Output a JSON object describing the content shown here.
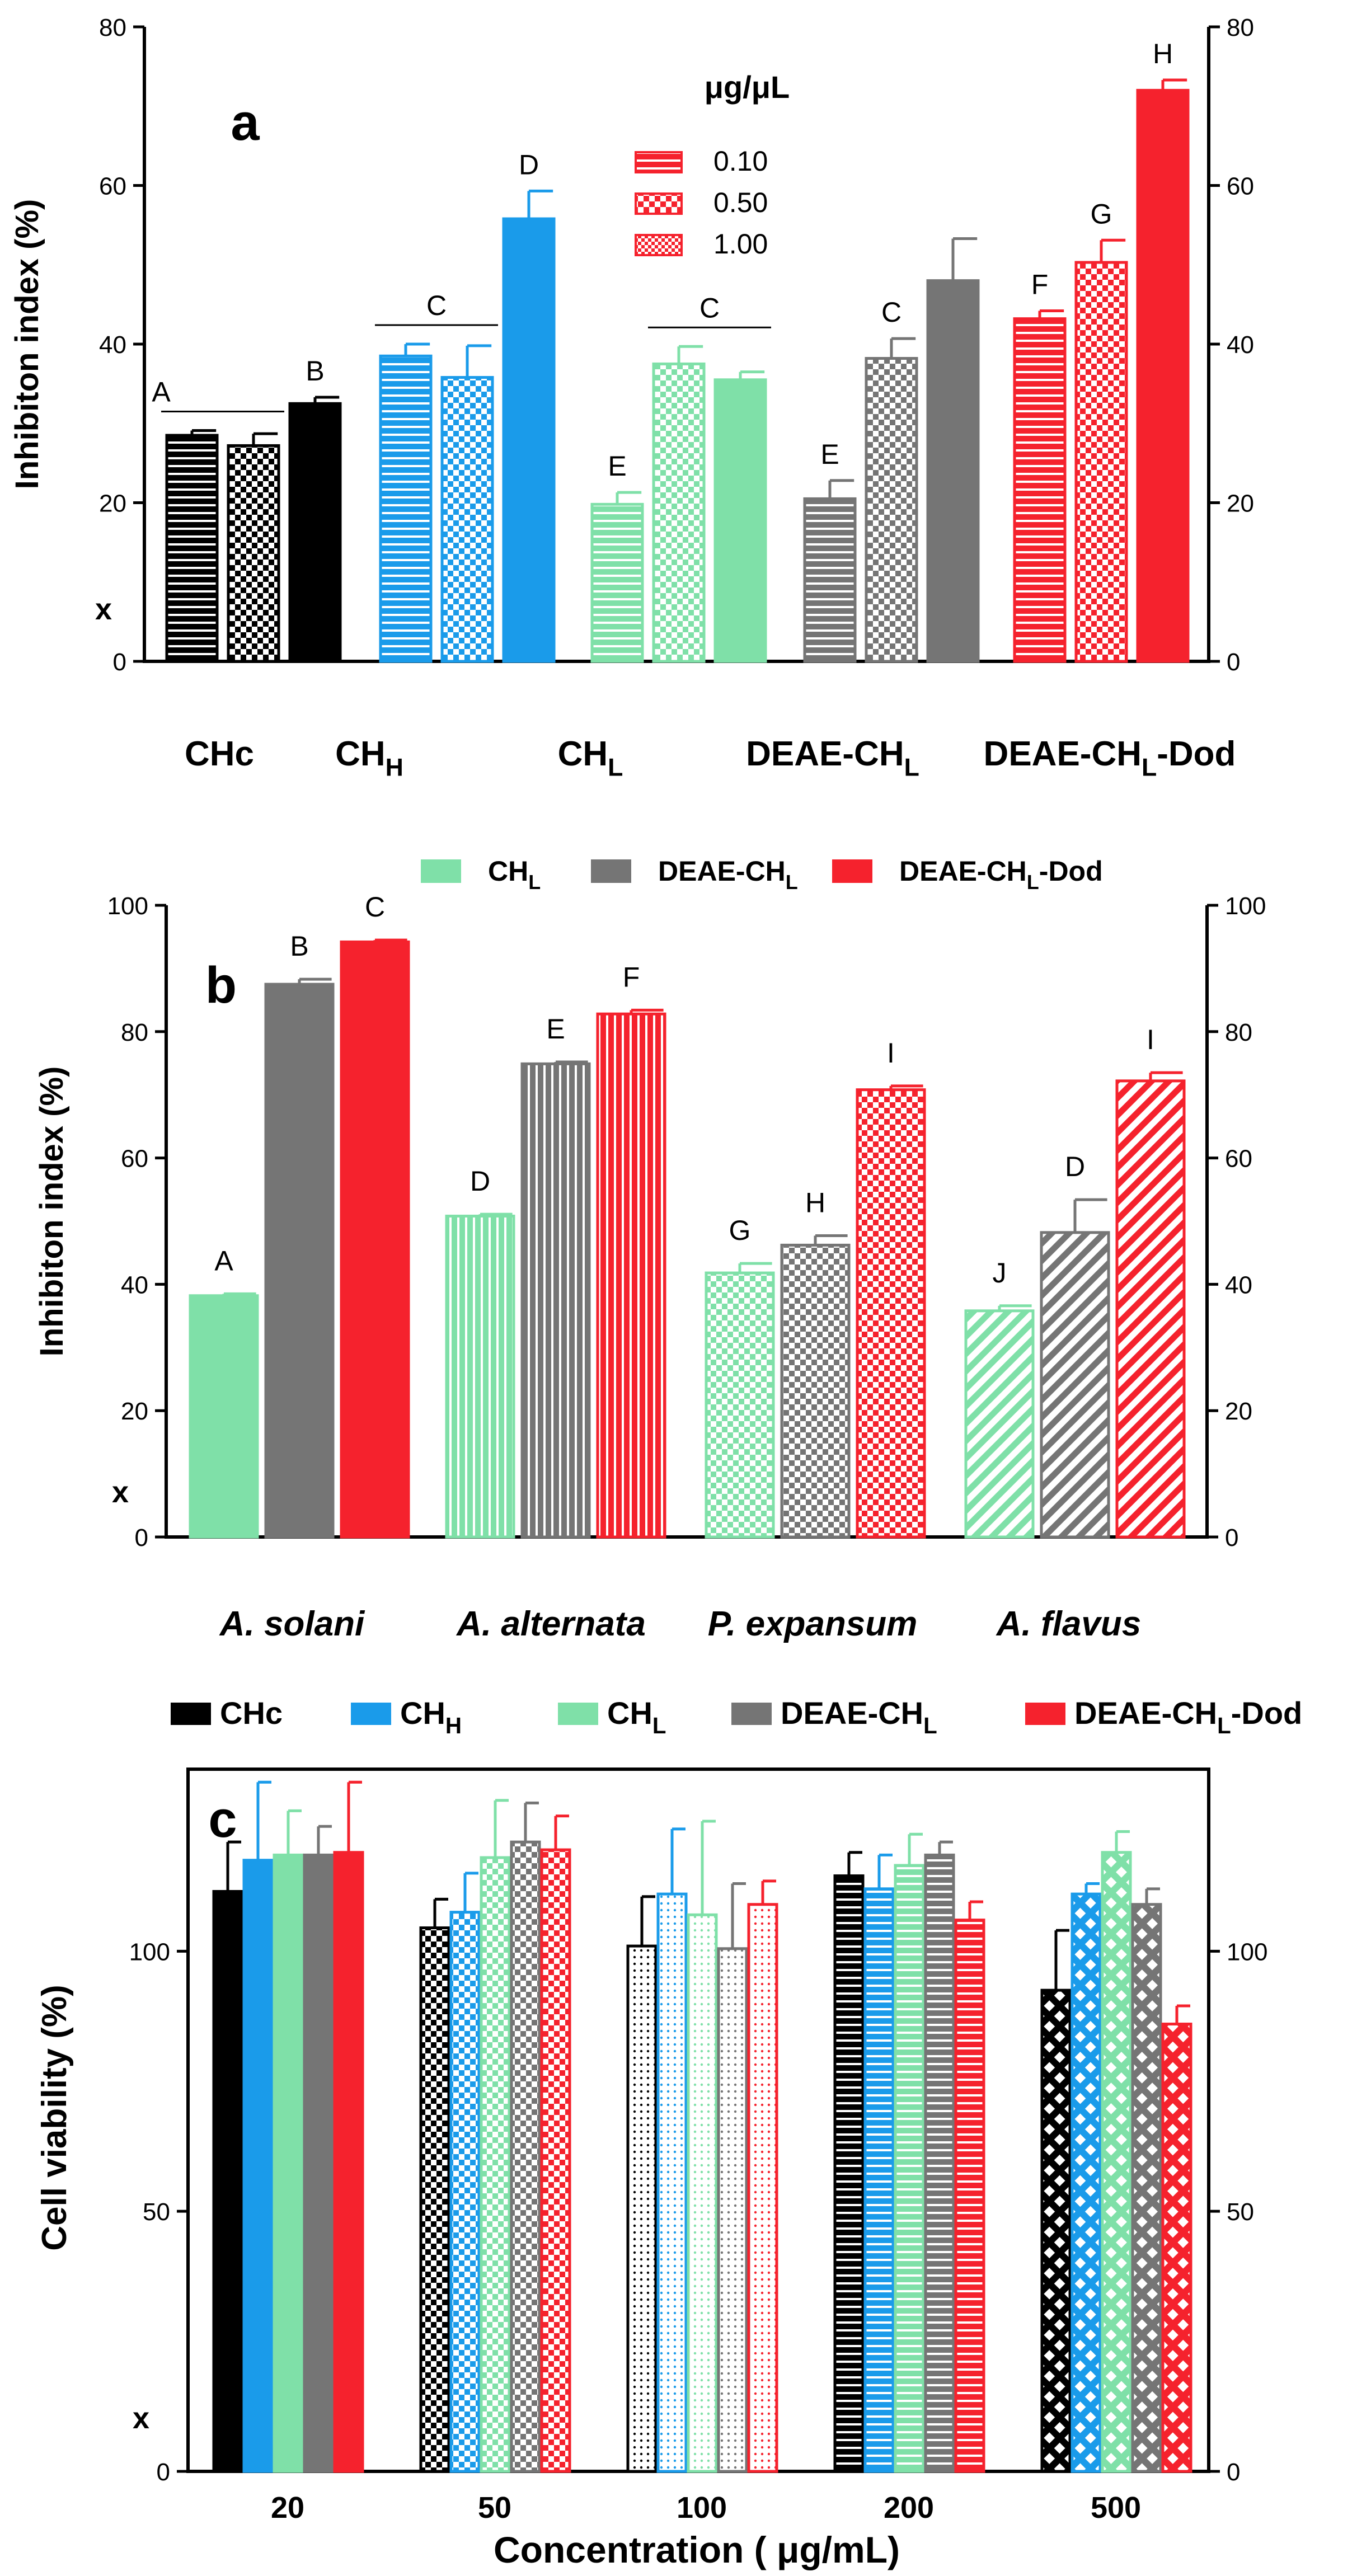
{
  "colors": {
    "black": "#000000",
    "blue": "#1a9bea",
    "green": "#7fe0a8",
    "gray": "#757575",
    "red": "#f5222d"
  },
  "chart_data": [
    {
      "id": "a",
      "type": "bar",
      "panel_label": "a",
      "ylabel": "Inhibiton index (%)",
      "xlabel": "",
      "ylim": [
        0,
        80
      ],
      "yticks": [
        0,
        20,
        40,
        60,
        80
      ],
      "y_marker": "x",
      "legend_title": "μg/μL",
      "legend": [
        {
          "label": "0.10",
          "pattern": "horizontal-lines"
        },
        {
          "label": "0.50",
          "pattern": "checker"
        },
        {
          "label": "1.00",
          "pattern": "dense-checker"
        }
      ],
      "groups": [
        {
          "label": "CHc",
          "color": "black",
          "bars": [
            {
              "value": 28.5,
              "err": 0.6,
              "pattern": "horizontal-lines"
            },
            {
              "value": 27.2,
              "err": 1.5,
              "pattern": "checker"
            },
            {
              "value": 32.5,
              "err": 0.8,
              "pattern": "solid"
            }
          ],
          "letters": [
            {
              "text": "A",
              "bars": [
                0,
                1
              ],
              "line": true
            },
            {
              "text": "B",
              "bars": [
                2
              ]
            }
          ]
        },
        {
          "label": "CH",
          "sub": "H",
          "color": "blue",
          "bars": [
            {
              "value": 38.5,
              "err": 1.5,
              "pattern": "horizontal-lines"
            },
            {
              "value": 35.8,
              "err": 4.0,
              "pattern": "checker"
            },
            {
              "value": 55.8,
              "err": 3.5,
              "pattern": "solid"
            }
          ],
          "letters": [
            {
              "text": "C",
              "bars": [
                0,
                1
              ],
              "line": true
            },
            {
              "text": "D",
              "bars": [
                2
              ]
            }
          ]
        },
        {
          "label": "CH",
          "sub": "L",
          "color": "green",
          "bars": [
            {
              "value": 19.8,
              "err": 1.5,
              "pattern": "horizontal-lines"
            },
            {
              "value": 37.5,
              "err": 2.2,
              "pattern": "checker"
            },
            {
              "value": 35.5,
              "err": 1.0,
              "pattern": "solid"
            }
          ],
          "letters": [
            {
              "text": "E",
              "bars": [
                0
              ]
            },
            {
              "text": "C",
              "bars": [
                1,
                2
              ],
              "line": true
            }
          ]
        },
        {
          "label": "DEAE-CH",
          "sub": "L",
          "color": "gray",
          "bars": [
            {
              "value": 20.5,
              "err": 2.3,
              "pattern": "horizontal-lines"
            },
            {
              "value": 38.2,
              "err": 2.5,
              "pattern": "checker"
            },
            {
              "value": 48.0,
              "err": 5.3,
              "pattern": "solid"
            }
          ],
          "letters": [
            {
              "text": "E",
              "bars": [
                0
              ]
            },
            {
              "text": "C",
              "bars": [
                1
              ]
            }
          ]
        },
        {
          "label": "DEAE-CH",
          "sub": "L",
          "suffix": "-Dod",
          "color": "red",
          "bars": [
            {
              "value": 43.2,
              "err": 1.0,
              "pattern": "horizontal-lines"
            },
            {
              "value": 50.3,
              "err": 2.8,
              "pattern": "checker"
            },
            {
              "value": 72.0,
              "err": 1.3,
              "pattern": "solid"
            }
          ],
          "letters": [
            {
              "text": "F",
              "bars": [
                0
              ]
            },
            {
              "text": "G",
              "bars": [
                1
              ]
            },
            {
              "text": "H",
              "bars": [
                2
              ]
            }
          ]
        }
      ]
    },
    {
      "id": "b",
      "type": "bar",
      "panel_label": "b",
      "ylabel": "Inhibiton index (%)",
      "xlabel": "",
      "ylim": [
        0,
        100
      ],
      "yticks": [
        0,
        20,
        40,
        60,
        80,
        100
      ],
      "y_marker": "x",
      "legend": [
        {
          "label": "CH",
          "sub": "L",
          "color": "green"
        },
        {
          "label": "DEAE-CH",
          "sub": "L",
          "color": "gray"
        },
        {
          "label": "DEAE-CH",
          "sub": "L",
          "suffix": "-Dod",
          "color": "red"
        }
      ],
      "groups": [
        {
          "label": "A. solani",
          "pattern": "solid",
          "bars": [
            {
              "value": 38.2,
              "err": 0.3,
              "color": "green",
              "letter": "A"
            },
            {
              "value": 87.5,
              "err": 0.8,
              "color": "gray",
              "letter": "B"
            },
            {
              "value": 94.2,
              "err": 0.3,
              "color": "red",
              "letter": "C"
            }
          ]
        },
        {
          "label": "A. alternata",
          "pattern": "vertical-lines",
          "bars": [
            {
              "value": 50.8,
              "err": 0.3,
              "color": "green",
              "letter": "D"
            },
            {
              "value": 74.9,
              "err": 0.3,
              "color": "gray",
              "letter": "E"
            },
            {
              "value": 82.8,
              "err": 0.6,
              "color": "red",
              "letter": "F"
            }
          ]
        },
        {
          "label": "P. expansum",
          "pattern": "checker",
          "bars": [
            {
              "value": 41.8,
              "err": 1.5,
              "color": "green",
              "letter": "G"
            },
            {
              "value": 46.2,
              "err": 1.5,
              "color": "gray",
              "letter": "H"
            },
            {
              "value": 70.8,
              "err": 0.6,
              "color": "red",
              "letter": "I"
            }
          ]
        },
        {
          "label": "A. flavus",
          "pattern": "diagonal",
          "bars": [
            {
              "value": 35.8,
              "err": 0.8,
              "color": "green",
              "letter": "J"
            },
            {
              "value": 48.2,
              "err": 5.2,
              "color": "gray",
              "letter": "D"
            },
            {
              "value": 72.2,
              "err": 1.3,
              "color": "red",
              "letter": "I"
            }
          ]
        }
      ]
    },
    {
      "id": "c",
      "type": "bar",
      "panel_label": "c",
      "ylabel": "Cell viability  (%)",
      "xlabel": "Concentration ( μg/mL)",
      "ylim": [
        0,
        135
      ],
      "yticks": [
        0,
        50,
        100
      ],
      "y_marker": "x",
      "legend": [
        {
          "label": "CHc",
          "color": "black"
        },
        {
          "label": "CH",
          "sub": "H",
          "color": "blue"
        },
        {
          "label": "CH",
          "sub": "L",
          "color": "green"
        },
        {
          "label": "DEAE-CH",
          "sub": "L",
          "color": "gray"
        },
        {
          "label": "DEAE-CH",
          "sub": "L",
          "suffix": "-Dod",
          "color": "red"
        }
      ],
      "series_colors": [
        "black",
        "blue",
        "green",
        "gray",
        "red"
      ],
      "groups": [
        {
          "label": "20",
          "pattern": "solid",
          "values": [
            111.5,
            117.5,
            118.5,
            118.5,
            119.0
          ],
          "errors": [
            9.5,
            15.0,
            8.5,
            5.5,
            13.5
          ]
        },
        {
          "label": "50",
          "pattern": "checker",
          "values": [
            104.5,
            107.5,
            118.0,
            121.0,
            119.5
          ],
          "errors": [
            5.5,
            7.5,
            11.0,
            7.5,
            6.5
          ]
        },
        {
          "label": "100",
          "pattern": "dots",
          "values": [
            101.0,
            111.0,
            107.0,
            100.5,
            109.0
          ],
          "errors": [
            9.5,
            12.5,
            18.0,
            12.5,
            4.5
          ]
        },
        {
          "label": "200",
          "pattern": "horizontal-lines",
          "values": [
            114.5,
            112.0,
            116.5,
            118.5,
            106.0
          ],
          "errors": [
            4.5,
            6.5,
            6.0,
            2.5,
            3.5
          ]
        },
        {
          "label": "500",
          "pattern": "crosshatch",
          "values": [
            92.5,
            111.0,
            119.0,
            109.0,
            86.0
          ],
          "errors": [
            11.5,
            2.0,
            4.0,
            3.0,
            3.5
          ]
        }
      ]
    }
  ]
}
